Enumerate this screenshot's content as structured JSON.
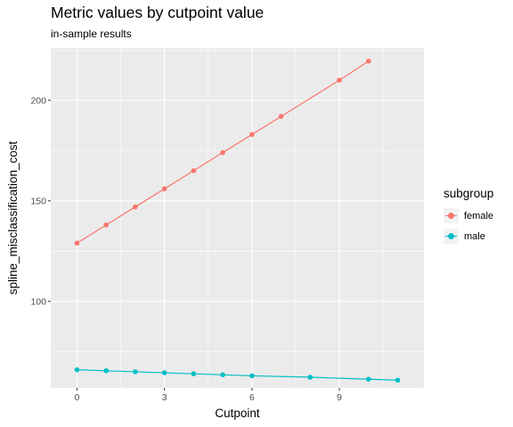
{
  "chart_data": {
    "type": "line",
    "title": "Metric values by cutpoint value",
    "subtitle": "in-sample results",
    "xlabel": "Cutpoint",
    "ylabel": "spline_misclassification_cost",
    "xlim": [
      -0.9,
      11.9
    ],
    "ylim": [
      57,
      226
    ],
    "x_ticks": [
      0,
      3,
      6,
      9
    ],
    "y_ticks": [
      100,
      150,
      200
    ],
    "grid": true,
    "legend_title": "subgroup",
    "legend_position": "right",
    "series": [
      {
        "name": "female",
        "color": "#F8766D",
        "x": [
          0,
          1,
          2,
          3,
          4,
          5,
          6,
          7,
          9,
          10
        ],
        "y": [
          129,
          138,
          147,
          156,
          165,
          174,
          183,
          192,
          210,
          219.5
        ]
      },
      {
        "name": "male",
        "color": "#00BFC4",
        "x": [
          0,
          1,
          2,
          3,
          4,
          5,
          6,
          8,
          10,
          11
        ],
        "y": [
          66,
          65.5,
          65,
          64.5,
          64,
          63.5,
          63,
          62.3,
          61.3,
          60.8
        ]
      }
    ]
  }
}
